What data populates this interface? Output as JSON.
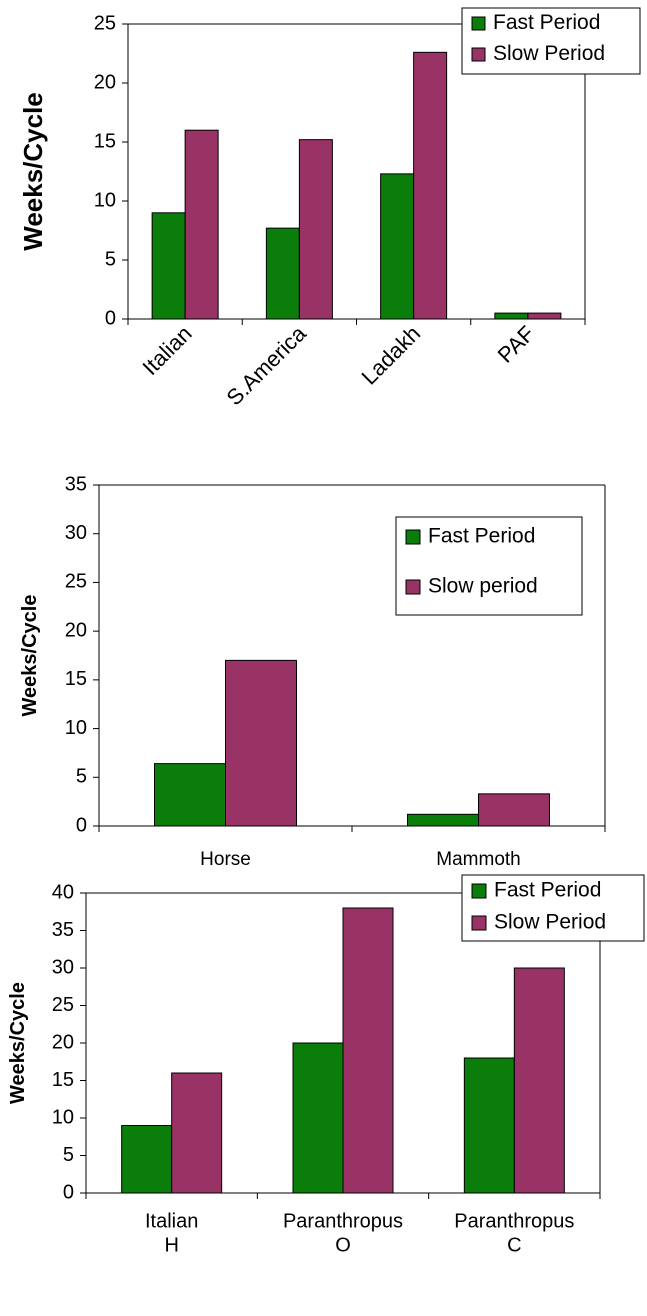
{
  "chart_data": [
    {
      "type": "bar",
      "ylabel": "Weeks/Cycle",
      "ylim": [
        0,
        25
      ],
      "yticks": [
        0,
        5,
        10,
        15,
        20,
        25
      ],
      "categories": [
        "Italian",
        "S.America",
        "Ladakh",
        "PAF"
      ],
      "series": [
        {
          "name": "Fast Period",
          "color": "#0a7d0a",
          "values": [
            9.0,
            7.7,
            12.3,
            0.5
          ]
        },
        {
          "name": "Slow Period",
          "color": "#993366",
          "values": [
            16.0,
            15.2,
            22.6,
            0.5
          ]
        }
      ],
      "legend_position": "top-right",
      "grid": false
    },
    {
      "type": "bar",
      "ylabel": "Weeks/Cycle",
      "ylim": [
        0,
        35
      ],
      "yticks": [
        0,
        5,
        10,
        15,
        20,
        25,
        30,
        35
      ],
      "categories": [
        "Horse",
        "Mammoth"
      ],
      "series": [
        {
          "name": "Fast Period",
          "color": "#0a7d0a",
          "values": [
            6.4,
            1.2
          ]
        },
        {
          "name": "Slow period",
          "color": "#993366",
          "values": [
            17.0,
            3.3
          ]
        }
      ],
      "legend_position": "top-right",
      "grid": false
    },
    {
      "type": "bar",
      "ylabel": "Weeks/Cycle",
      "ylim": [
        0,
        40
      ],
      "yticks": [
        0,
        5,
        10,
        15,
        20,
        25,
        30,
        35,
        40
      ],
      "categories": [
        [
          "Italian",
          "H"
        ],
        [
          "Paranthropus",
          "O"
        ],
        [
          "Paranthropus",
          "C"
        ]
      ],
      "series": [
        {
          "name": "Fast Period",
          "color": "#0a7d0a",
          "values": [
            9.0,
            20.0,
            18.0
          ]
        },
        {
          "name": "Slow Period",
          "color": "#993366",
          "values": [
            16.0,
            38.0,
            30.0
          ]
        }
      ],
      "legend_position": "top-right",
      "grid": false
    }
  ]
}
